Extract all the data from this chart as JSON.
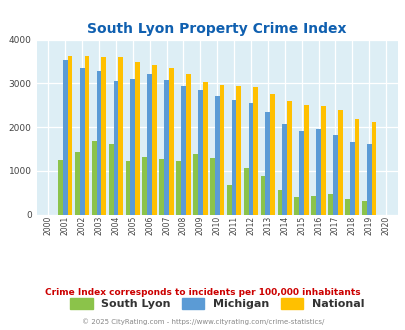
{
  "title": "South Lyon Property Crime Index",
  "years": [
    "2000",
    "2001",
    "2002",
    "2003",
    "2004",
    "2005",
    "2006",
    "2007",
    "2008",
    "2009",
    "2010",
    "2011",
    "2012",
    "2013",
    "2014",
    "2015",
    "2016",
    "2017",
    "2018",
    "2019",
    "2020"
  ],
  "south_lyon": [
    0,
    1250,
    1420,
    1680,
    1620,
    1220,
    1320,
    1270,
    1230,
    1390,
    1290,
    680,
    1060,
    870,
    550,
    410,
    420,
    470,
    350,
    300,
    0
  ],
  "michigan": [
    0,
    3530,
    3350,
    3280,
    3060,
    3090,
    3220,
    3080,
    2950,
    2850,
    2700,
    2620,
    2560,
    2340,
    2060,
    1900,
    1960,
    1820,
    1650,
    1620,
    0
  ],
  "national": [
    0,
    3630,
    3620,
    3600,
    3610,
    3490,
    3430,
    3340,
    3220,
    3040,
    2970,
    2940,
    2920,
    2760,
    2600,
    2510,
    2490,
    2400,
    2190,
    2120,
    0
  ],
  "south_lyon_color": "#8bc34a",
  "michigan_color": "#5b9bd5",
  "national_color": "#ffc000",
  "bg_color": "#ddeef5",
  "ylim": [
    0,
    4000
  ],
  "note_text": "Crime Index corresponds to incidents per 100,000 inhabitants",
  "footer": "© 2025 CityRating.com - https://www.cityrating.com/crime-statistics/",
  "title_color": "#1060b0",
  "footer_color": "#888888",
  "note_color": "#cc0000",
  "legend_labels": [
    "South Lyon",
    "Michigan",
    "National"
  ]
}
